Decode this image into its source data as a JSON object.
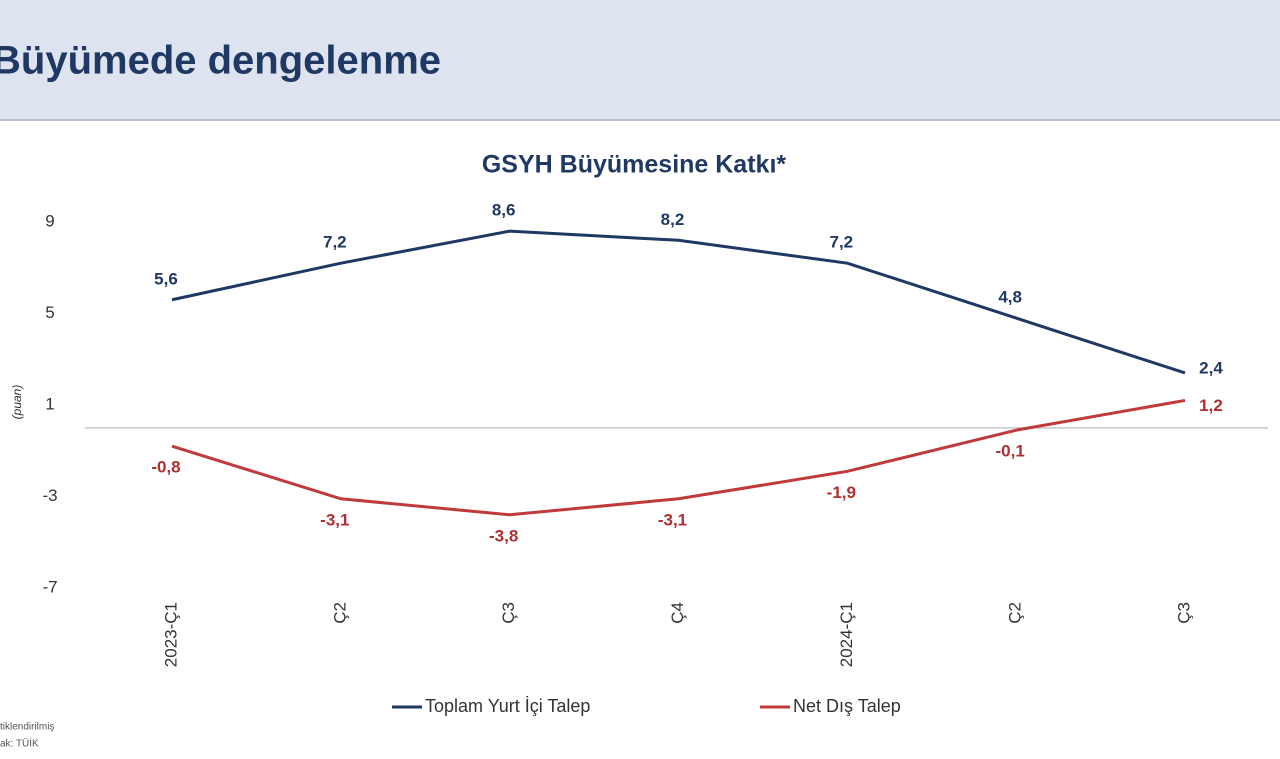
{
  "header": {
    "title": "Büyümede dengelenme"
  },
  "chart_data": {
    "type": "line",
    "title": "GSYH Büyümesine Katkı*",
    "y_label": "(puan)",
    "categories": [
      "2023-Ç1",
      "Ç2",
      "Ç3",
      "Ç4",
      "2024-Ç1",
      "Ç2",
      "Ç3"
    ],
    "series": [
      {
        "name": "Toplam Yurt İçi Talep",
        "color": "#1f3864",
        "values": [
          5.6,
          7.2,
          8.6,
          8.2,
          7.2,
          4.8,
          2.4
        ],
        "value_labels": [
          "5,6",
          "7,2",
          "8,6",
          "8,2",
          "7,2",
          "4,8",
          "2,4"
        ]
      },
      {
        "name": "Net Dış Talep",
        "color": "#c0393b",
        "values": [
          -0.8,
          -3.1,
          -3.8,
          -3.1,
          -1.9,
          -0.1,
          1.2
        ],
        "value_labels": [
          "-0,8",
          "-3,1",
          "-3,8",
          "-3,1",
          "-1,9",
          "-0,1",
          "1,2"
        ]
      }
    ],
    "ylim": [
      -7,
      9
    ],
    "yticks": [
      9,
      5,
      1,
      -3,
      -7
    ],
    "legend": "bottom"
  },
  "footnotes": [
    "tiklendirilmiş",
    "ak: TÜİK"
  ]
}
